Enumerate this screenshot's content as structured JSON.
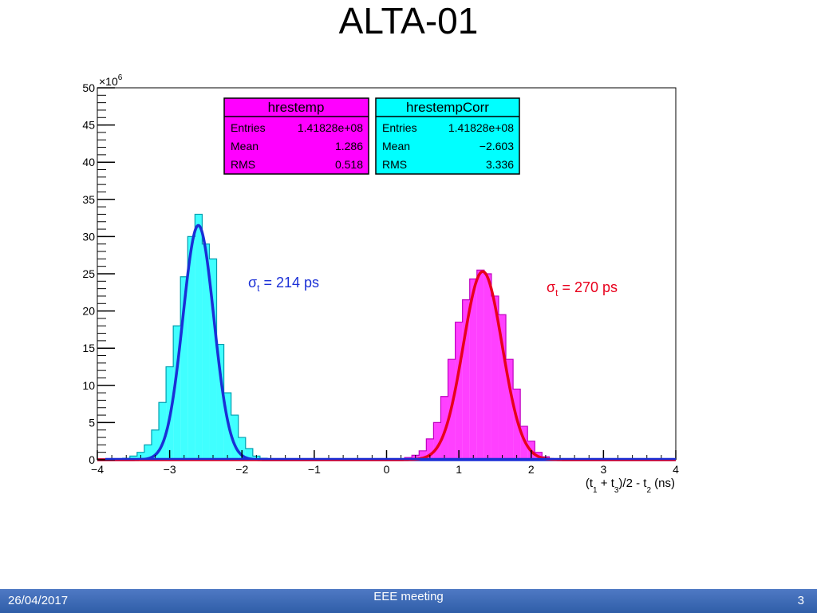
{
  "slide": {
    "title": "ALTA-01",
    "footer_date": "26/04/2017",
    "footer_center": "EEE meeting",
    "page_number": "3"
  },
  "colors": {
    "hrestemp_fill": "#ff00ff",
    "hrestempCorr_fill": "#00ffff",
    "blue_fit": "#1a2fd6",
    "red_fit": "#e8001c"
  },
  "chart_data": {
    "type": "bar",
    "xlabel": "(t1 + t3)/2 - t2 (ns)",
    "xlabel_parts": {
      "open": "(t",
      "s1": "1",
      "plus": " + t",
      "s3": "3",
      "mid": ")/2 - t",
      "s2": "2",
      "close": " (ns)"
    },
    "y_multiplier": "×10",
    "y_multiplier_exp": "6",
    "xlim": [
      -4,
      4
    ],
    "ylim": [
      0,
      50
    ],
    "x_ticks": [
      -4,
      -3,
      -2,
      -1,
      0,
      1,
      2,
      3,
      4
    ],
    "y_ticks": [
      0,
      5,
      10,
      15,
      20,
      25,
      30,
      35,
      40,
      45,
      50
    ],
    "grid": false,
    "bin_width": 0.1,
    "series": [
      {
        "name": "hrestempCorr",
        "bins": [
          [
            -3.6,
            0.2
          ],
          [
            -3.5,
            0.5
          ],
          [
            -3.4,
            1.0
          ],
          [
            -3.3,
            2.0
          ],
          [
            -3.2,
            4.0
          ],
          [
            -3.1,
            7.7
          ],
          [
            -3.0,
            12.5
          ],
          [
            -2.9,
            18.0
          ],
          [
            -2.8,
            24.6
          ],
          [
            -2.7,
            30.0
          ],
          [
            -2.6,
            33.0
          ],
          [
            -2.5,
            29.0
          ],
          [
            -2.4,
            27.0
          ],
          [
            -2.3,
            15.5
          ],
          [
            -2.2,
            9.0
          ],
          [
            -2.1,
            6.0
          ],
          [
            -2.0,
            3.0
          ],
          [
            -1.9,
            1.5
          ],
          [
            -1.8,
            0.5
          ],
          [
            -1.7,
            0.2
          ]
        ]
      },
      {
        "name": "hrestemp",
        "bins": [
          [
            0.3,
            0.3
          ],
          [
            0.4,
            0.6
          ],
          [
            0.5,
            1.2
          ],
          [
            0.6,
            2.8
          ],
          [
            0.7,
            5.0
          ],
          [
            0.8,
            8.5
          ],
          [
            0.9,
            13.5
          ],
          [
            1.0,
            18.5
          ],
          [
            1.1,
            21.5
          ],
          [
            1.2,
            24.3
          ],
          [
            1.3,
            25.5
          ],
          [
            1.4,
            25.0
          ],
          [
            1.5,
            22.0
          ],
          [
            1.6,
            19.5
          ],
          [
            1.7,
            13.5
          ],
          [
            1.8,
            9.5
          ],
          [
            1.9,
            4.5
          ],
          [
            2.0,
            2.5
          ],
          [
            2.1,
            1.0
          ],
          [
            2.2,
            0.4
          ]
        ]
      }
    ],
    "fits": [
      {
        "name": "blue",
        "mean": -2.603,
        "sigma": 0.214,
        "amplitude": 31.5
      },
      {
        "name": "red",
        "mean": 1.33,
        "sigma": 0.27,
        "amplitude": 25.3
      }
    ],
    "stat_boxes": [
      {
        "title": "hrestemp",
        "entries": "1.41828e+08",
        "mean": "1.286",
        "rms": "0.518"
      },
      {
        "title": "hrestempCorr",
        "entries": "1.41828e+08",
        "mean": "−2.603",
        "rms": "3.336"
      }
    ],
    "stat_labels": {
      "entries": "Entries",
      "mean": "Mean",
      "rms": "RMS"
    },
    "annotations": [
      {
        "symbol": "σ",
        "sub": "t",
        "text": " = 214 ps"
      },
      {
        "symbol": "σ",
        "sub": "t",
        "text": " = 270 ps"
      }
    ]
  }
}
